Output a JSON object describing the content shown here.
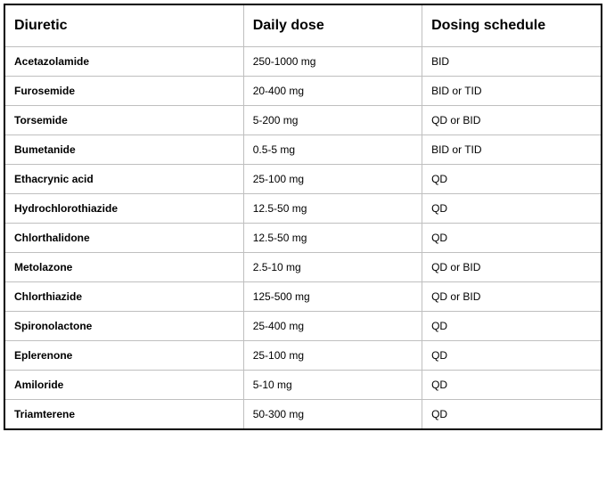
{
  "table": {
    "type": "table",
    "background_color": "#ffffff",
    "outer_border_color": "#000000",
    "grid_color": "#bfbfbf",
    "header_fontsize": 16,
    "body_fontsize": 12,
    "columns": [
      {
        "key": "diuretic",
        "label": "Diuretic",
        "width_pct": 40,
        "bold": true
      },
      {
        "key": "dose",
        "label": "Daily dose",
        "width_pct": 30,
        "bold": false
      },
      {
        "key": "schedule",
        "label": "Dosing schedule",
        "width_pct": 30,
        "bold": false
      }
    ],
    "rows": [
      {
        "diuretic": "Acetazolamide",
        "dose": "250-1000 mg",
        "schedule": "BID"
      },
      {
        "diuretic": "Furosemide",
        "dose": "20-400 mg",
        "schedule": "BID or TID"
      },
      {
        "diuretic": "Torsemide",
        "dose": "5-200 mg",
        "schedule": "QD or BID"
      },
      {
        "diuretic": "Bumetanide",
        "dose": "0.5-5 mg",
        "schedule": "BID or TID"
      },
      {
        "diuretic": "Ethacrynic acid",
        "dose": "25-100 mg",
        "schedule": "QD"
      },
      {
        "diuretic": "Hydrochlorothiazide",
        "dose": "12.5-50 mg",
        "schedule": "QD"
      },
      {
        "diuretic": "Chlorthalidone",
        "dose": "12.5-50 mg",
        "schedule": "QD"
      },
      {
        "diuretic": "Metolazone",
        "dose": "2.5-10 mg",
        "schedule": "QD or BID"
      },
      {
        "diuretic": "Chlorthiazide",
        "dose": "125-500 mg",
        "schedule": "QD or BID"
      },
      {
        "diuretic": "Spironolactone",
        "dose": "25-400 mg",
        "schedule": "QD"
      },
      {
        "diuretic": "Eplerenone",
        "dose": "25-100 mg",
        "schedule": "QD"
      },
      {
        "diuretic": "Amiloride",
        "dose": "5-10 mg",
        "schedule": "QD"
      },
      {
        "diuretic": "Triamterene",
        "dose": "50-300 mg",
        "schedule": "QD"
      }
    ]
  }
}
